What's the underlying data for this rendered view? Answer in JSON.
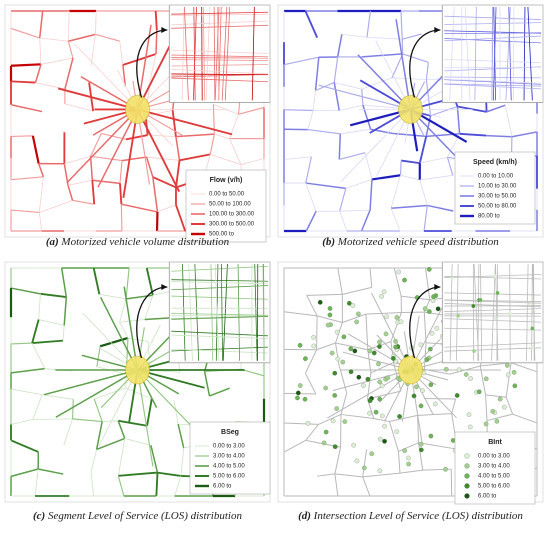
{
  "panels": [
    {
      "label": "(a)",
      "caption": "Motorized vehicle volume distribution",
      "kind": "line",
      "colors": [
        "#f7cfcf",
        "#f19c9c",
        "#e96a6a",
        "#e03a3a",
        "#c40000"
      ],
      "legend": {
        "title": "Flow (v/h)",
        "items": [
          "0.00 to 50.00",
          "50.00 to 100.00",
          "100.00 to 300.00",
          "300.00 to 500.00",
          "500.00 to"
        ]
      }
    },
    {
      "label": "(b)",
      "caption": "Motorized vehicle speed distribution",
      "kind": "line",
      "colors": [
        "#dadaf7",
        "#ababee",
        "#7e7ee5",
        "#4c4cd8",
        "#1e1ebf"
      ],
      "legend": {
        "title": "Speed (km/h)",
        "items": [
          "0.00 to 10.00",
          "10.00 to 30.00",
          "30.00 to 50.00",
          "50.00 to 80.00",
          "80.00 to"
        ]
      }
    },
    {
      "label": "(c)",
      "caption": "Segment Level of Service (LOS) distribution",
      "kind": "line",
      "colors": [
        "#cde3c5",
        "#93c683",
        "#5c9f4a",
        "#317b24",
        "#1a5a12"
      ],
      "legend": {
        "title": "BSeg",
        "items": [
          "0.00 to 3.00",
          "3.00 to 4.00",
          "4.00 to 5.00",
          "5.00 to 6.00",
          "6.00 to"
        ]
      }
    },
    {
      "label": "(d)",
      "caption": "Intersection Level of Service (LOS) distribution",
      "kind": "point",
      "colors": [
        "#dcefd4",
        "#a2d18f",
        "#6db457",
        "#3f8c2c",
        "#1b5a12"
      ],
      "legend": {
        "title": "BInt",
        "items": [
          "0.00 to 3.00",
          "3.00 to 4.00",
          "4.00 to 5.00",
          "5.00 to 6.00",
          "6.00 to"
        ]
      }
    }
  ]
}
